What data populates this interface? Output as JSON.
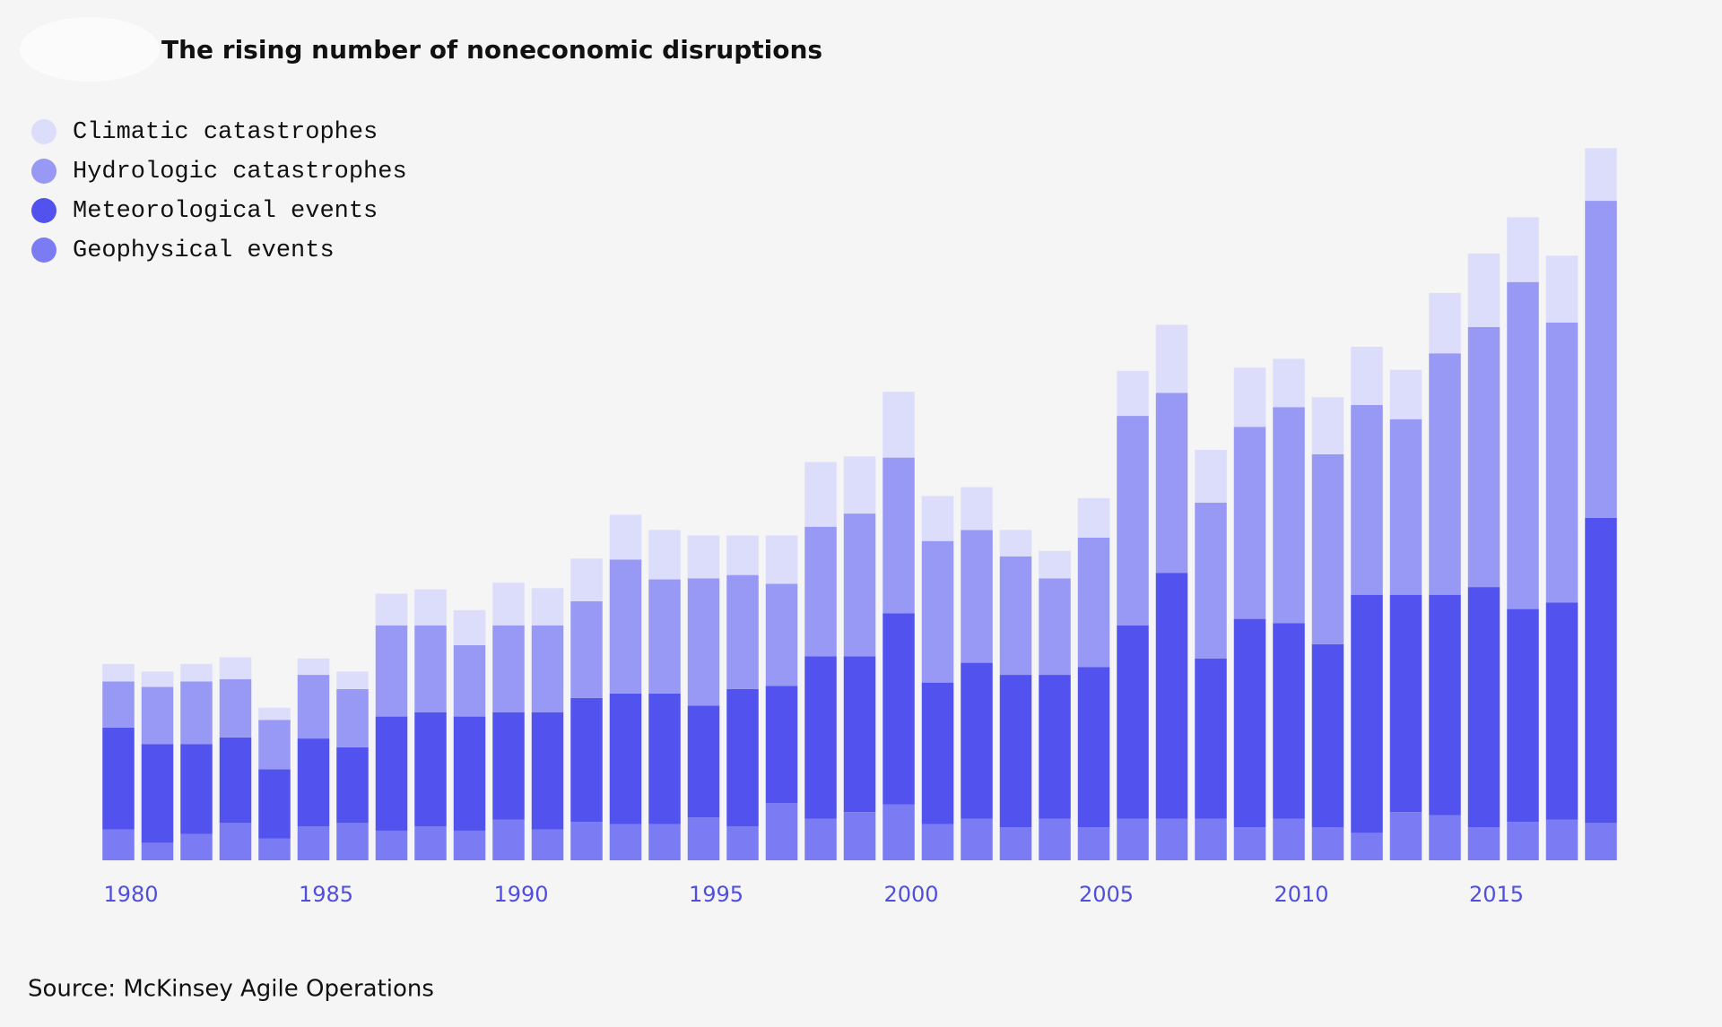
{
  "chart_data": {
    "type": "stacked_bar",
    "title": "The rising number of noneconomic disruptions",
    "source": "Source: McKinsey Agile Operations",
    "categories": [
      1980,
      null,
      null,
      null,
      null,
      1985,
      null,
      null,
      null,
      null,
      1990,
      null,
      null,
      null,
      null,
      1995,
      null,
      null,
      null,
      null,
      2000,
      null,
      null,
      null,
      null,
      2005,
      null,
      null,
      null,
      null,
      2010,
      null,
      null,
      null,
      null,
      2015,
      null,
      null,
      null
    ],
    "series": [
      {
        "name": "Climatic catastrophes",
        "color": "#dcdcfb",
        "values": [
          16,
          14,
          16,
          20,
          11,
          15,
          16,
          29,
          33,
          32,
          39,
          34,
          39,
          41,
          45,
          39,
          36,
          44,
          59,
          52,
          60,
          41,
          39,
          24,
          25,
          36,
          41,
          62,
          48,
          54,
          44,
          52,
          53,
          45,
          55,
          67,
          59,
          61,
          48
        ]
      },
      {
        "name": "Hydrologic catastrophes",
        "color": "#9898f5",
        "values": [
          42,
          52,
          57,
          53,
          45,
          58,
          53,
          83,
          79,
          65,
          79,
          79,
          88,
          122,
          104,
          116,
          104,
          93,
          118,
          130,
          142,
          129,
          121,
          108,
          88,
          118,
          191,
          164,
          142,
          175,
          197,
          173,
          173,
          160,
          220,
          237,
          298,
          255,
          289
        ]
      },
      {
        "name": "Meteorological events",
        "color": "#5252ee",
        "values": [
          93,
          90,
          82,
          78,
          63,
          80,
          69,
          104,
          104,
          104,
          98,
          107,
          113,
          119,
          119,
          102,
          125,
          107,
          148,
          142,
          174,
          129,
          142,
          139,
          131,
          146,
          176,
          224,
          146,
          190,
          178,
          167,
          217,
          198,
          201,
          219,
          194,
          198,
          278
        ]
      },
      {
        "name": "Geophysical events",
        "color": "#7b7bf3",
        "values": [
          28,
          16,
          24,
          34,
          20,
          31,
          34,
          27,
          31,
          27,
          37,
          28,
          35,
          33,
          33,
          39,
          31,
          52,
          38,
          44,
          51,
          33,
          38,
          30,
          38,
          30,
          38,
          38,
          38,
          30,
          38,
          30,
          25,
          44,
          41,
          30,
          35,
          37,
          34
        ]
      }
    ]
  }
}
